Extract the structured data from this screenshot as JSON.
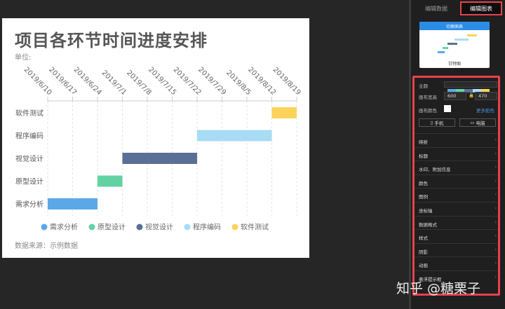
{
  "chart": {
    "title": "项目各环节时间进度安排",
    "unit_label": "单位:",
    "source_label": "数据来源：示例数据"
  },
  "chart_data": {
    "type": "gantt",
    "x_ticks": [
      "2019/6/10",
      "2019/6/17",
      "2019/6/24",
      "2019/7/1",
      "2019/7/8",
      "2019/7/15",
      "2019/7/22",
      "2019/7/29",
      "2019/8/5",
      "2019/8/12",
      "2019/8/19"
    ],
    "categories": [
      "需求分析",
      "原型设计",
      "视觉设计",
      "程序编码",
      "软件测试"
    ],
    "tasks": [
      {
        "name": "需求分析",
        "start": "2019/6/10",
        "end": "2019/6/24",
        "color": "#5ba8e8"
      },
      {
        "name": "原型设计",
        "start": "2019/6/24",
        "end": "2019/7/1",
        "color": "#63d2a3"
      },
      {
        "name": "视觉设计",
        "start": "2019/7/1",
        "end": "2019/7/22",
        "color": "#5a6f96"
      },
      {
        "name": "程序编码",
        "start": "2019/7/22",
        "end": "2019/8/12",
        "color": "#a9dcf4"
      },
      {
        "name": "软件测试",
        "start": "2019/8/12",
        "end": "2019/8/19",
        "color": "#fcd35a"
      }
    ],
    "legend": [
      "需求分析",
      "原型设计",
      "视觉设计",
      "程序编码",
      "软件测试"
    ],
    "legend_position": "bottom"
  },
  "panel": {
    "tab_data": "编辑数据",
    "tab_chart": "编辑图表",
    "preview_head": "切换图表",
    "preview_caption": "甘特图",
    "theme_label": "主题",
    "size_label": "画布宽高",
    "width_value": "600",
    "height_value": "470",
    "color_label": "画布颜色",
    "more_colors": "更多配色",
    "mobile_btn": "手机",
    "desktop_btn": "电脑",
    "sections": [
      "映射",
      "标题",
      "水印、附加信息",
      "颜色",
      "图例",
      "坐标轴",
      "数据格式",
      "样式",
      "阴影",
      "动画",
      "悬浮提示框"
    ]
  },
  "watermark": "知乎 @糖栗子"
}
